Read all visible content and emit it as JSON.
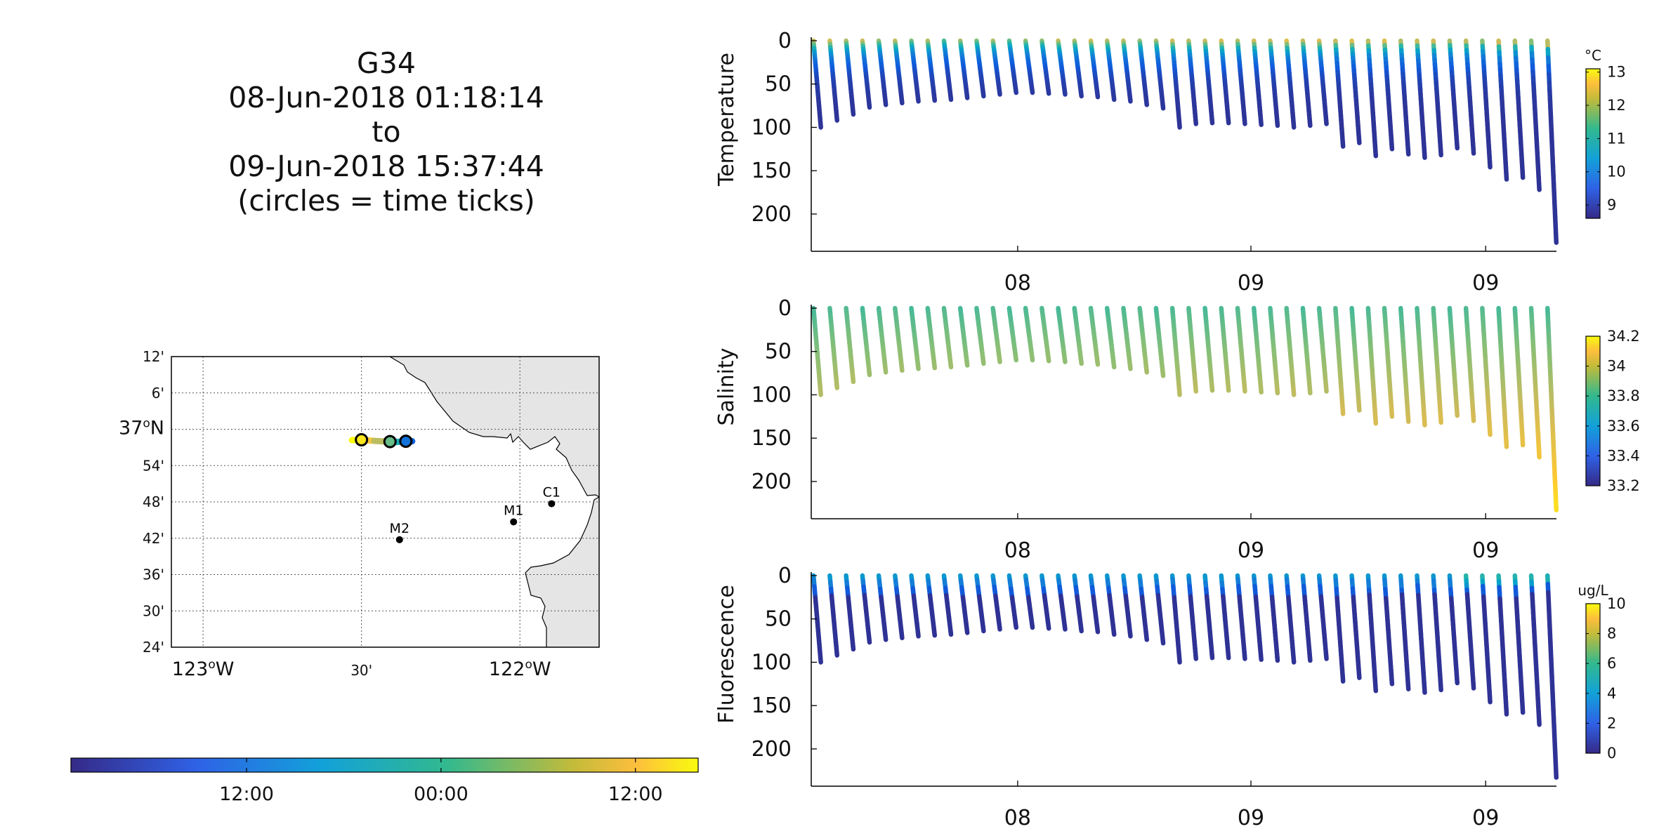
{
  "title_block": {
    "glider": "G34",
    "start": "08-Jun-2018 01:18:14",
    "to": "to",
    "end": "09-Jun-2018 15:37:44",
    "note": "(circles = time ticks)"
  },
  "chart_data": [
    {
      "type": "map",
      "lon_ticks": [
        {
          "lon": -123.0,
          "label": "123",
          "deg": "o",
          "suffix": "W"
        },
        {
          "lon": -122.5,
          "label": "30'",
          "deg": "",
          "suffix": ""
        },
        {
          "lon": -122.0,
          "label": "122",
          "deg": "o",
          "suffix": "W"
        }
      ],
      "lat_ticks": [
        {
          "lat": 37.2,
          "label": "12'",
          "deg": "",
          "suffix": ""
        },
        {
          "lat": 37.1,
          "label": "6'",
          "deg": "",
          "suffix": ""
        },
        {
          "lat": 37.0,
          "label": "37",
          "deg": "o",
          "suffix": "N"
        },
        {
          "lat": 36.9,
          "label": "54'",
          "deg": "",
          "suffix": ""
        },
        {
          "lat": 36.8,
          "label": "48'",
          "deg": "",
          "suffix": ""
        },
        {
          "lat": 36.7,
          "label": "42'",
          "deg": "",
          "suffix": ""
        },
        {
          "lat": 36.6,
          "label": "36'",
          "deg": "",
          "suffix": ""
        },
        {
          "lat": 36.5,
          "label": "30'",
          "deg": "",
          "suffix": ""
        },
        {
          "lat": 36.4,
          "label": "24'",
          "deg": "",
          "suffix": ""
        }
      ],
      "lon_range": [
        -123.1,
        -121.75
      ],
      "lat_range": [
        36.4,
        37.2
      ],
      "grid": true,
      "stations": [
        {
          "name": "M2",
          "lon": -122.38,
          "lat": 36.696
        },
        {
          "name": "M1",
          "lon": -122.02,
          "lat": 36.745
        },
        {
          "name": "C1",
          "lon": -121.9,
          "lat": 36.795
        }
      ],
      "track": [
        {
          "lon": -122.53,
          "lat": 36.97
        },
        {
          "lon": -122.5,
          "lat": 36.971
        },
        {
          "lon": -122.46,
          "lat": 36.968
        },
        {
          "lon": -122.42,
          "lat": 36.966
        },
        {
          "lon": -122.39,
          "lat": 36.965
        },
        {
          "lon": -122.37,
          "lat": 36.966
        },
        {
          "lon": -122.35,
          "lat": 36.968
        },
        {
          "lon": -122.34,
          "lat": 36.967
        }
      ],
      "time_circles": [
        {
          "lon": -122.5,
          "lat": 36.971,
          "t": 0.95
        },
        {
          "lon": -122.41,
          "lat": 36.966,
          "t": 0.58
        },
        {
          "lon": -122.36,
          "lat": 36.967,
          "t": 0.2
        }
      ]
    },
    {
      "type": "colorbar",
      "tick_labels": [
        "12:00",
        "00:00",
        "12:00"
      ],
      "tick_positions": [
        0.28,
        0.59,
        0.9
      ]
    },
    {
      "type": "scatter",
      "variable": "temperature",
      "ylabel": "Temperature",
      "y_ticks": [
        0,
        50,
        100,
        150,
        200
      ],
      "ylim": [
        0,
        243
      ],
      "x_ticks": [
        "08",
        "09",
        "09"
      ],
      "colorbar": {
        "unit": "°C",
        "ticks": [
          "9",
          "10",
          "11",
          "12",
          "13"
        ],
        "range": [
          8.6,
          13.1
        ]
      }
    },
    {
      "type": "scatter",
      "variable": "salinity",
      "ylabel": "Salinity",
      "y_ticks": [
        0,
        50,
        100,
        150,
        200
      ],
      "ylim": [
        0,
        243
      ],
      "x_ticks": [
        "08",
        "09",
        "09"
      ],
      "colorbar": {
        "unit": "",
        "ticks": [
          "33.2",
          "33.4",
          "33.6",
          "33.8",
          "34",
          "34.2"
        ],
        "range": [
          33.2,
          34.2
        ]
      }
    },
    {
      "type": "scatter",
      "variable": "fluorescence",
      "ylabel": "Fluorescence",
      "y_ticks": [
        0,
        50,
        100,
        150,
        200
      ],
      "ylim": [
        0,
        243
      ],
      "x_ticks": [
        "08",
        "09",
        "09"
      ],
      "colorbar": {
        "unit": "ug/L",
        "ticks": [
          "0",
          "2",
          "4",
          "6",
          "8",
          "10"
        ],
        "range": [
          0,
          10
        ]
      }
    }
  ],
  "profiles": {
    "time_units": "fraction of deployment",
    "dive_depths": [
      100,
      92,
      85,
      77,
      74,
      72,
      70,
      69,
      68,
      66,
      64,
      62,
      60,
      60,
      61,
      62,
      64,
      65,
      68,
      70,
      74,
      78,
      100,
      96,
      95,
      95,
      96,
      97,
      98,
      100,
      98,
      96,
      122,
      118,
      133,
      125,
      131,
      135,
      132,
      124,
      130,
      146,
      160,
      158,
      172,
      233
    ],
    "surface_temperature": [
      12.3,
      12.4,
      12.0,
      12.3,
      11.8,
      12.2,
      11.6,
      12.1,
      11.3,
      11.9,
      11.6,
      12.0,
      11.4,
      11.8,
      11.7,
      12.2,
      12.0,
      12.3,
      12.1,
      12.2,
      11.8,
      12.0,
      12.4,
      12.2,
      12.3,
      12.5,
      12.1,
      12.4,
      12.3,
      12.6,
      12.3,
      12.5,
      12.4,
      12.7,
      12.4,
      12.7,
      12.3,
      12.5,
      12.6,
      12.2,
      12.4,
      12.0,
      12.7,
      12.4,
      12.1,
      12.9
    ]
  }
}
